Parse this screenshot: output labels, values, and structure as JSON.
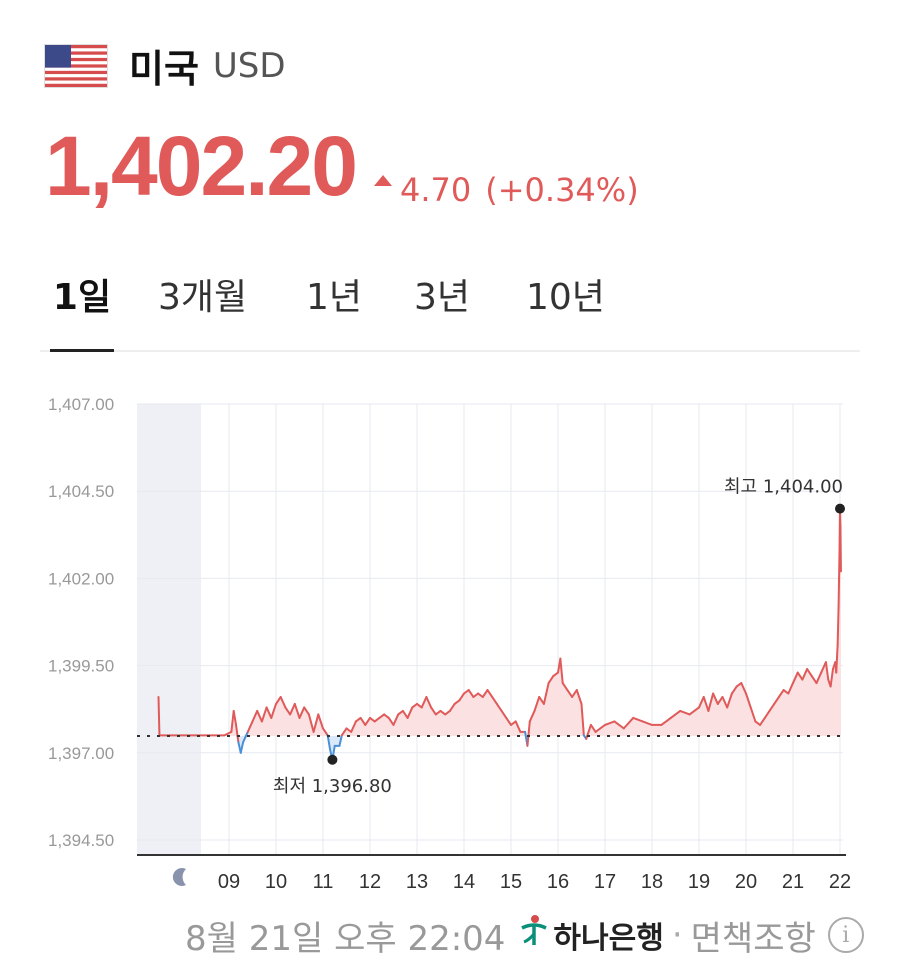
{
  "header": {
    "country": "미국",
    "currency": "USD"
  },
  "quote": {
    "price": "1,402.20",
    "change": "4.70",
    "change_pct": "(+0.34%)",
    "direction": "up",
    "color": "#e05a5a"
  },
  "tabs": [
    {
      "label": "1일",
      "active": true
    },
    {
      "label": "3개월",
      "active": false
    },
    {
      "label": "1년",
      "active": false
    },
    {
      "label": "3년",
      "active": false
    },
    {
      "label": "10년",
      "active": false
    }
  ],
  "chart_data": {
    "type": "line",
    "y_ticks": [
      "1,407.00",
      "1,404.50",
      "1,402.00",
      "1,399.50",
      "1,397.00",
      "1,394.50"
    ],
    "x_ticks": [
      "09",
      "10",
      "11",
      "12",
      "13",
      "14",
      "15",
      "16",
      "17",
      "18",
      "19",
      "20",
      "21",
      "22"
    ],
    "ylim": [
      1394.5,
      1407.0
    ],
    "xlim": [
      7.5,
      22.1
    ],
    "grid": true,
    "baseline": 1397.48,
    "night_icon": "moon-icon",
    "high_label": "최고 1,404.00",
    "high": {
      "x": 22.0,
      "y": 1404.0
    },
    "low_label": "최저 1,396.80",
    "low": {
      "x": 11.2,
      "y": 1396.8
    },
    "up_color": "#e05a5a",
    "down_color": "#4a90d9",
    "series": [
      {
        "values": [
          [
            7.5,
            1398.6
          ],
          [
            7.52,
            1397.5
          ],
          [
            8.9,
            1397.5
          ],
          [
            9.05,
            1397.6
          ],
          [
            9.1,
            1398.2
          ],
          [
            9.15,
            1397.8
          ],
          [
            9.2,
            1397.3
          ],
          [
            9.25,
            1397.0
          ],
          [
            9.3,
            1397.3
          ],
          [
            9.4,
            1397.6
          ],
          [
            9.5,
            1397.9
          ],
          [
            9.6,
            1398.2
          ],
          [
            9.7,
            1397.9
          ],
          [
            9.8,
            1398.3
          ],
          [
            9.9,
            1398.0
          ],
          [
            10.0,
            1398.4
          ],
          [
            10.1,
            1398.6
          ],
          [
            10.2,
            1398.3
          ],
          [
            10.3,
            1398.1
          ],
          [
            10.4,
            1398.4
          ],
          [
            10.5,
            1398.0
          ],
          [
            10.6,
            1398.3
          ],
          [
            10.7,
            1398.1
          ],
          [
            10.8,
            1397.6
          ],
          [
            10.9,
            1398.1
          ],
          [
            11.0,
            1397.7
          ],
          [
            11.1,
            1397.5
          ],
          [
            11.15,
            1397.1
          ],
          [
            11.2,
            1396.8
          ],
          [
            11.25,
            1397.2
          ],
          [
            11.35,
            1397.2
          ],
          [
            11.4,
            1397.5
          ],
          [
            11.5,
            1397.7
          ],
          [
            11.6,
            1397.6
          ],
          [
            11.7,
            1397.9
          ],
          [
            11.8,
            1398.0
          ],
          [
            11.9,
            1397.8
          ],
          [
            12.0,
            1398.0
          ],
          [
            12.1,
            1397.9
          ],
          [
            12.2,
            1398.0
          ],
          [
            12.3,
            1398.1
          ],
          [
            12.4,
            1398.0
          ],
          [
            12.5,
            1397.8
          ],
          [
            12.6,
            1398.1
          ],
          [
            12.7,
            1398.2
          ],
          [
            12.8,
            1398.0
          ],
          [
            12.9,
            1398.3
          ],
          [
            13.0,
            1398.4
          ],
          [
            13.1,
            1398.3
          ],
          [
            13.2,
            1398.6
          ],
          [
            13.3,
            1398.3
          ],
          [
            13.4,
            1398.1
          ],
          [
            13.5,
            1398.2
          ],
          [
            13.6,
            1398.1
          ],
          [
            13.7,
            1398.2
          ],
          [
            13.8,
            1398.4
          ],
          [
            13.9,
            1398.5
          ],
          [
            14.0,
            1398.7
          ],
          [
            14.1,
            1398.8
          ],
          [
            14.2,
            1398.6
          ],
          [
            14.3,
            1398.7
          ],
          [
            14.4,
            1398.6
          ],
          [
            14.5,
            1398.8
          ],
          [
            14.6,
            1398.6
          ],
          [
            14.7,
            1398.4
          ],
          [
            14.8,
            1398.2
          ],
          [
            14.9,
            1398.0
          ],
          [
            15.0,
            1397.8
          ],
          [
            15.1,
            1397.9
          ],
          [
            15.2,
            1397.6
          ],
          [
            15.3,
            1397.6
          ],
          [
            15.35,
            1397.2
          ],
          [
            15.4,
            1397.9
          ],
          [
            15.5,
            1398.2
          ],
          [
            15.6,
            1398.6
          ],
          [
            15.7,
            1398.4
          ],
          [
            15.8,
            1399.0
          ],
          [
            15.9,
            1399.2
          ],
          [
            16.0,
            1399.3
          ],
          [
            16.05,
            1399.7
          ],
          [
            16.1,
            1399.0
          ],
          [
            16.2,
            1398.8
          ],
          [
            16.3,
            1398.6
          ],
          [
            16.4,
            1398.8
          ],
          [
            16.5,
            1398.4
          ],
          [
            16.55,
            1397.5
          ],
          [
            16.6,
            1397.4
          ],
          [
            16.7,
            1397.8
          ],
          [
            16.8,
            1397.6
          ],
          [
            16.9,
            1397.7
          ],
          [
            17.0,
            1397.8
          ],
          [
            17.2,
            1397.9
          ],
          [
            17.4,
            1397.7
          ],
          [
            17.6,
            1398.0
          ],
          [
            17.8,
            1397.9
          ],
          [
            18.0,
            1397.8
          ],
          [
            18.2,
            1397.8
          ],
          [
            18.4,
            1398.0
          ],
          [
            18.6,
            1398.2
          ],
          [
            18.8,
            1398.1
          ],
          [
            19.0,
            1398.3
          ],
          [
            19.1,
            1398.6
          ],
          [
            19.2,
            1398.2
          ],
          [
            19.3,
            1398.7
          ],
          [
            19.4,
            1398.4
          ],
          [
            19.5,
            1398.6
          ],
          [
            19.6,
            1398.3
          ],
          [
            19.7,
            1398.7
          ],
          [
            19.8,
            1398.9
          ],
          [
            19.9,
            1399.0
          ],
          [
            20.0,
            1398.7
          ],
          [
            20.1,
            1398.3
          ],
          [
            20.2,
            1397.9
          ],
          [
            20.3,
            1397.8
          ],
          [
            20.4,
            1398.0
          ],
          [
            20.5,
            1398.2
          ],
          [
            20.6,
            1398.4
          ],
          [
            20.7,
            1398.6
          ],
          [
            20.8,
            1398.8
          ],
          [
            20.9,
            1398.7
          ],
          [
            21.0,
            1399.0
          ],
          [
            21.1,
            1399.3
          ],
          [
            21.2,
            1399.1
          ],
          [
            21.3,
            1399.4
          ],
          [
            21.4,
            1399.2
          ],
          [
            21.5,
            1399.0
          ],
          [
            21.6,
            1399.3
          ],
          [
            21.7,
            1399.6
          ],
          [
            21.75,
            1399.1
          ],
          [
            21.8,
            1398.9
          ],
          [
            21.85,
            1399.4
          ],
          [
            21.9,
            1399.6
          ],
          [
            21.92,
            1399.3
          ],
          [
            21.95,
            1400.1
          ],
          [
            21.97,
            1401.2
          ],
          [
            21.99,
            1402.8
          ],
          [
            22.0,
            1404.0
          ],
          [
            22.01,
            1403.5
          ],
          [
            22.02,
            1402.2
          ]
        ]
      }
    ]
  },
  "footer": {
    "timestamp": "8월 21일 오후 22:04",
    "bank_name": "하나은행",
    "separator": "·",
    "disclaimer": "면책조항",
    "info_symbol": "i"
  }
}
